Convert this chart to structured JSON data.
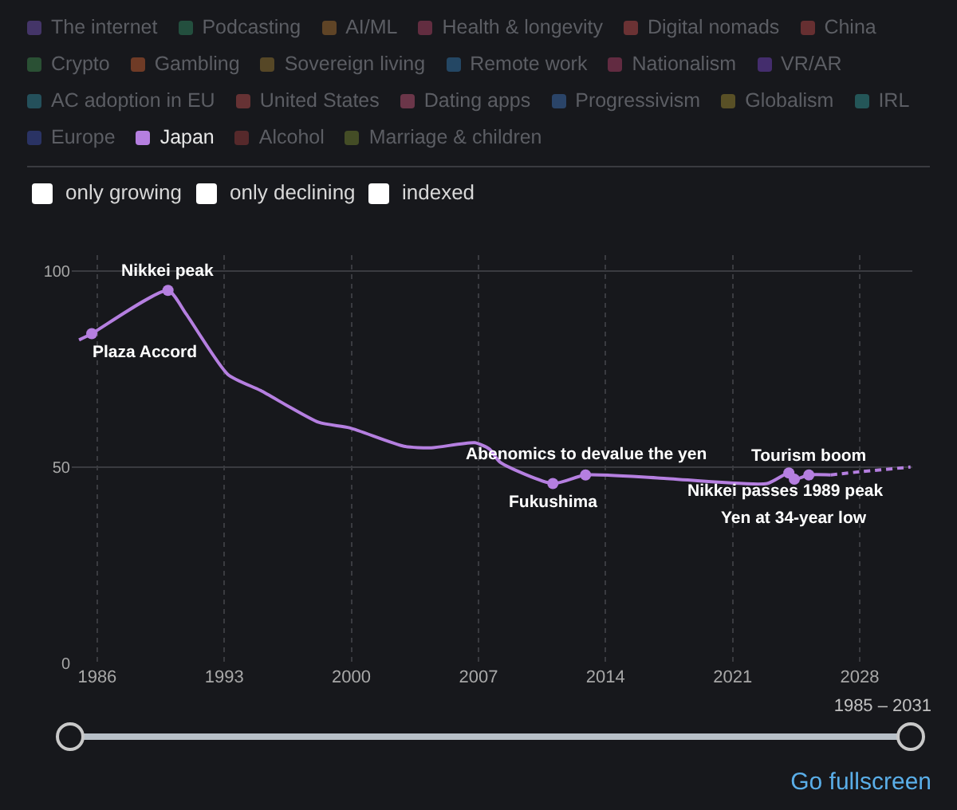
{
  "chart_data": {
    "type": "line",
    "legend": "top",
    "grid": true,
    "xlim": [
      1984.6,
      2030.9
    ],
    "ylim": [
      0,
      104
    ],
    "xticks": [
      1986,
      1993,
      2000,
      2007,
      2014,
      2021,
      2028
    ],
    "yticks": [
      0,
      50,
      100
    ],
    "series": [
      {
        "name": "The internet",
        "color": "#6a4fa8"
      },
      {
        "name": "Podcasting",
        "color": "#2e7d5b"
      },
      {
        "name": "AI/ML",
        "color": "#9a6a30"
      },
      {
        "name": "Health & longevity",
        "color": "#a0405e"
      },
      {
        "name": "Digital nomads",
        "color": "#b04848"
      },
      {
        "name": "China",
        "color": "#a84444"
      },
      {
        "name": "Crypto",
        "color": "#3b8048"
      },
      {
        "name": "Gambling",
        "color": "#b85a30"
      },
      {
        "name": "Sovereign living",
        "color": "#8a7030"
      },
      {
        "name": "Remote work",
        "color": "#2f6fa0"
      },
      {
        "name": "Nationalism",
        "color": "#a03c60"
      },
      {
        "name": "VR/AR",
        "color": "#6a40b0"
      },
      {
        "name": "AC adoption in EU",
        "color": "#2f8090"
      },
      {
        "name": "United States",
        "color": "#a84848"
      },
      {
        "name": "Dating apps",
        "color": "#b05070"
      },
      {
        "name": "Progressivism",
        "color": "#3a6aa8"
      },
      {
        "name": "Globalism",
        "color": "#908030"
      },
      {
        "name": "IRL",
        "color": "#2f8a8a"
      },
      {
        "name": "Europe",
        "color": "#3a4aa0"
      },
      {
        "name": "Japan",
        "color": "#b57fe0",
        "x": [
          1985.0,
          1985.7,
          1989.9,
          1990.9,
          1993.2,
          1995.0,
          1998.2,
          1999.9,
          2002.9,
          2004.4,
          2006.8,
          2007.6,
          2008.2,
          2011.1,
          2012.9,
          2017.0,
          2022.9,
          2024.1,
          2024.4,
          2025.2,
          2026.4
        ],
        "values": [
          82.4,
          84,
          95,
          89,
          73.6,
          69.5,
          61.4,
          60,
          55.3,
          54.9,
          56.2,
          54.6,
          51.2,
          45.8,
          48,
          47.2,
          45.8,
          48.5,
          46.9,
          48,
          48
        ]
      },
      {
        "color": "#b57fe0",
        "line_style": "dashed",
        "x": [
          2026.4,
          2028,
          2030.8
        ],
        "values": [
          48,
          48.8,
          50
        ]
      },
      {
        "name": "Alcohol",
        "color": "#8a3838"
      },
      {
        "name": "Marriage & children",
        "color": "#6a7a30"
      }
    ],
    "annotations": [
      {
        "text": "Plaza Accord",
        "x": 1985.7,
        "y": 84
      },
      {
        "text": "Nikkei peak",
        "x": 1989.9,
        "y": 95
      },
      {
        "text": "Fukushima",
        "x": 2011.1,
        "y": 45.8
      },
      {
        "text": "Abenomics to devalue the yen",
        "x": 2012.9,
        "y": 48
      },
      {
        "text": "Nikkei passes 1989 peak",
        "x": 2024.1,
        "y": 48.5
      },
      {
        "text": "Yen at 34-year low",
        "x": 2024.4,
        "y": 46.9
      },
      {
        "text": "Tourism boom",
        "x": 2025.2,
        "y": 48
      },
      "only growing",
      "only declining",
      "indexed",
      "1985 – 2031",
      "Go fullscreen"
    ]
  }
}
